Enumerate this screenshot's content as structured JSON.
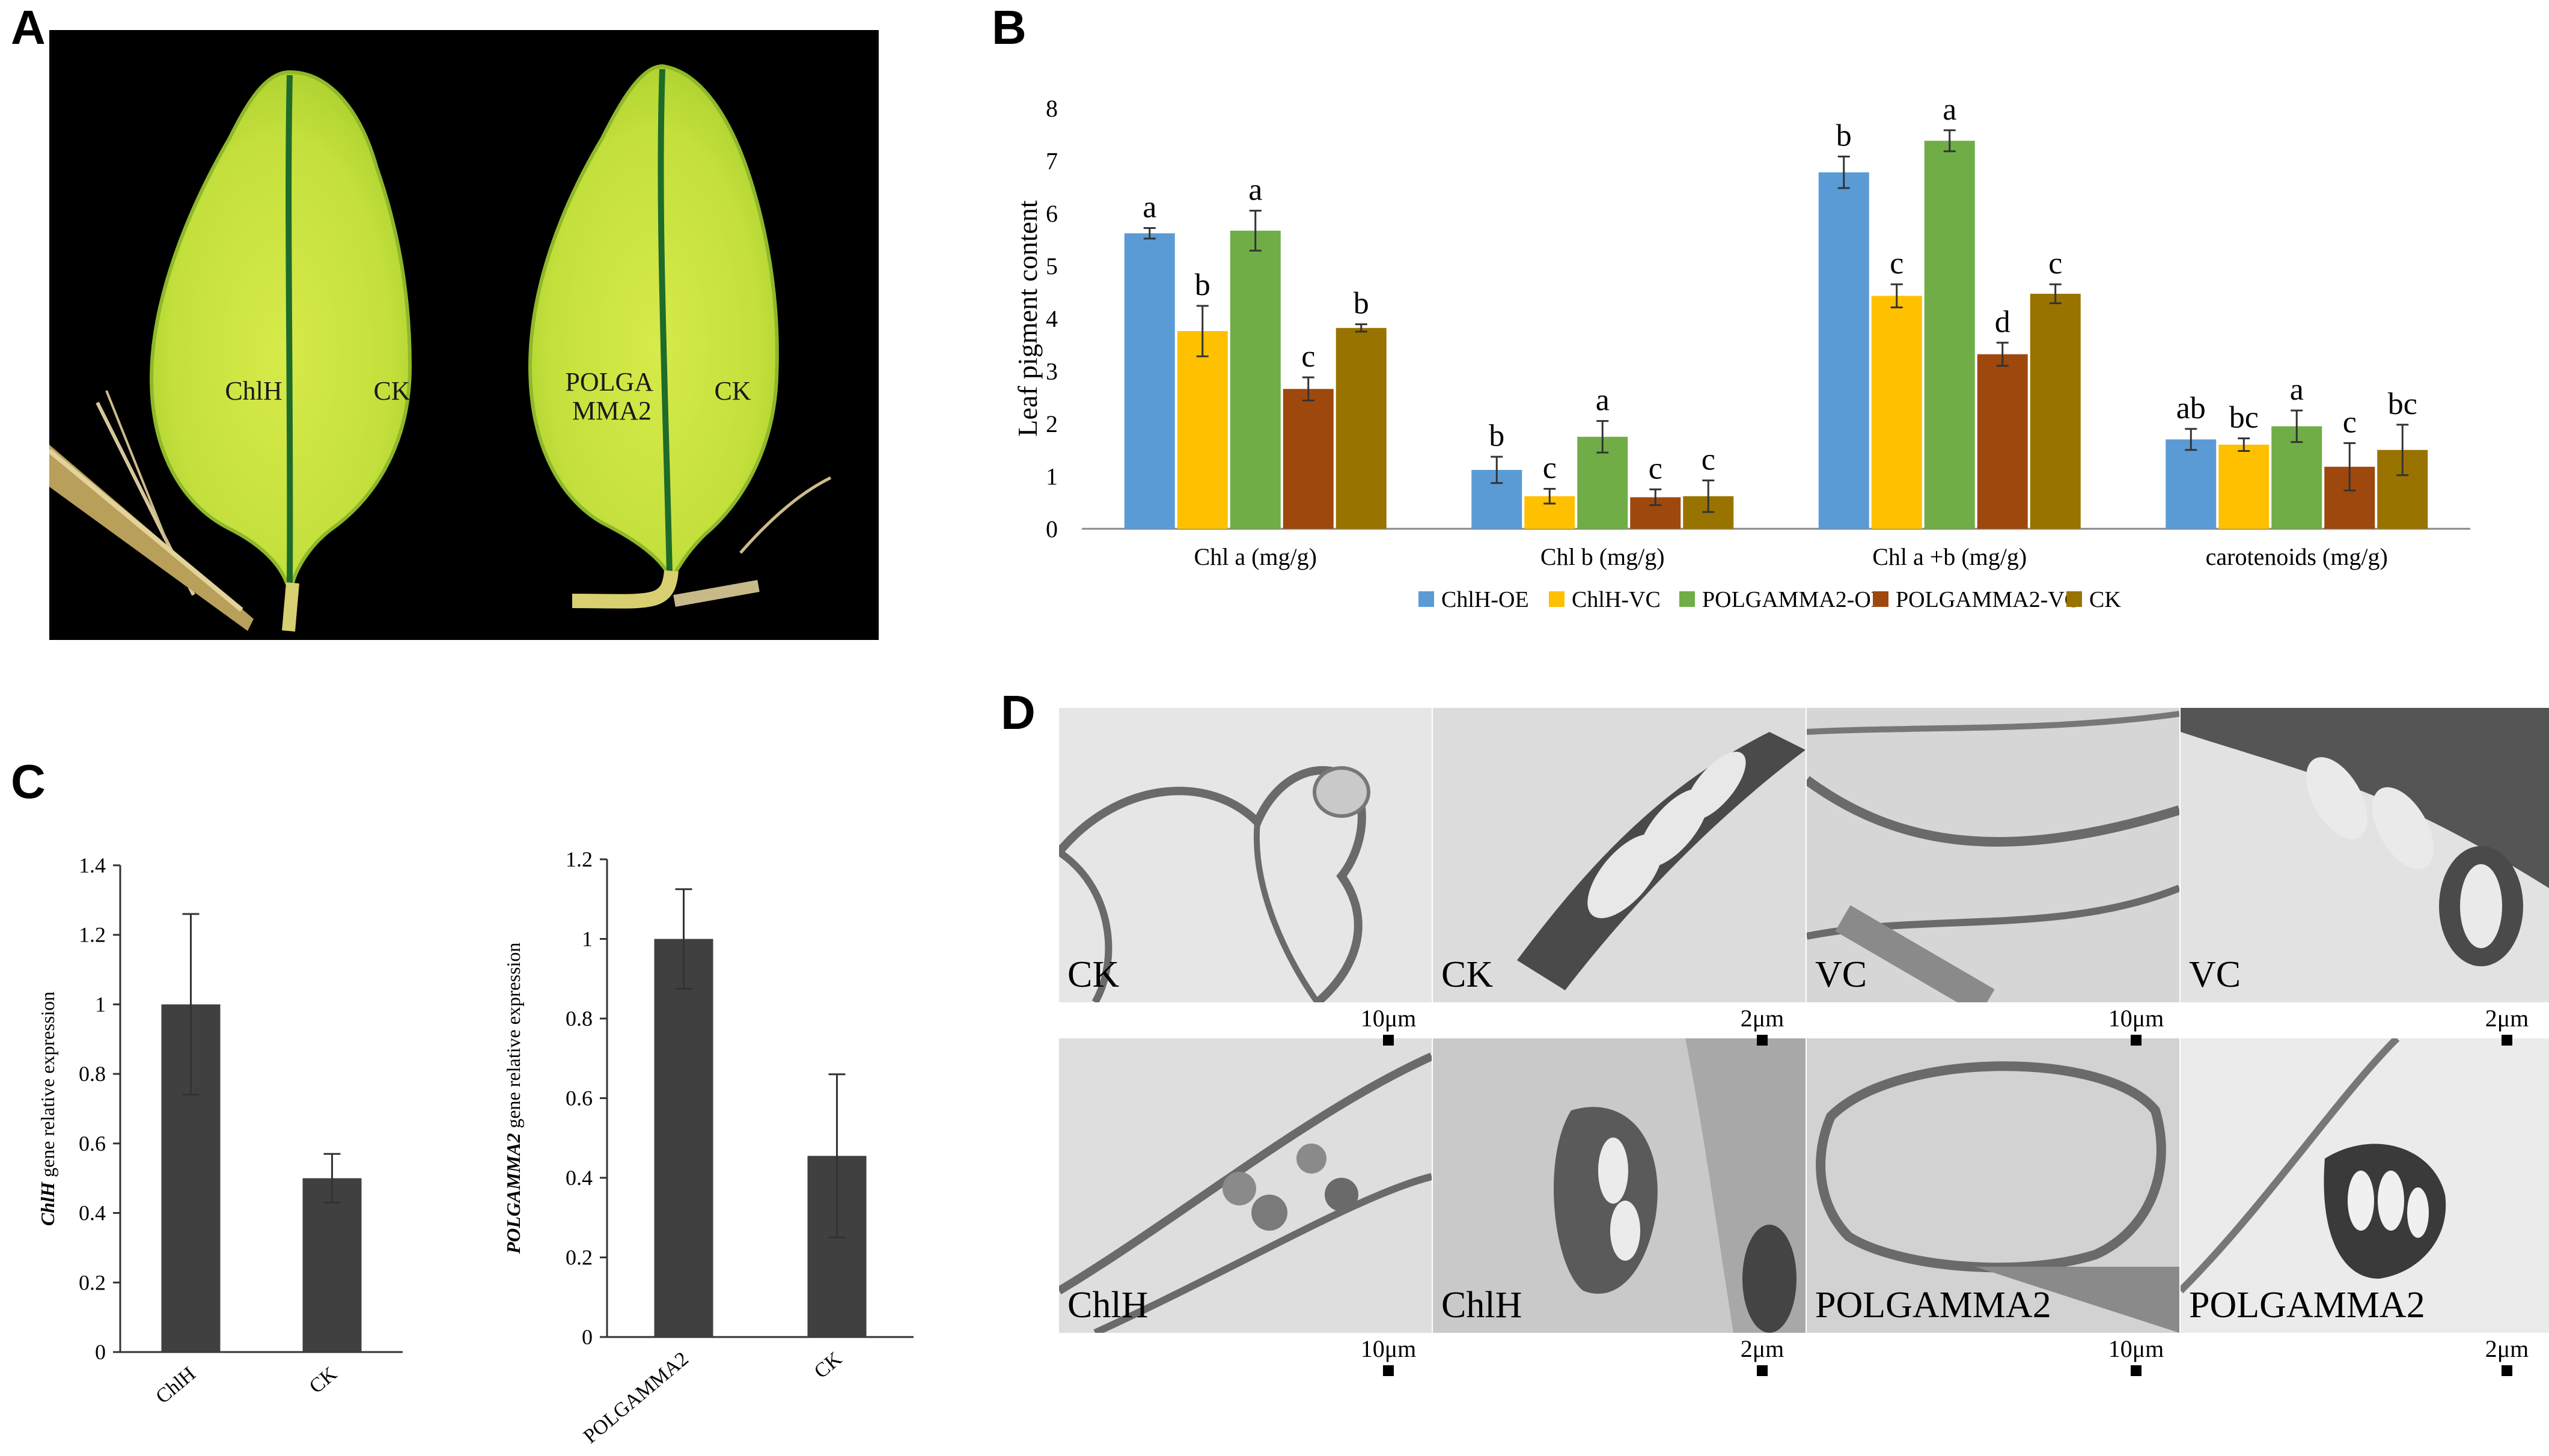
{
  "panel_labels": {
    "a": "A",
    "b": "B",
    "c": "C",
    "d": "D"
  },
  "panel_a": {
    "left_leaf_left": "ChlH",
    "left_leaf_right": "CK",
    "right_leaf_left": "POLGA\nMMA2",
    "right_leaf_right": "CK"
  },
  "chart_data": [
    {
      "type": "bar",
      "panel": "B",
      "categories": [
        "Chl a (mg/g)",
        "Chl b (mg/g)",
        "Chl a +b (mg/g)",
        "carotenoids (mg/g)"
      ],
      "ylabel": "Leaf pigment content",
      "ylim": [
        0,
        8
      ],
      "yticks": [
        0,
        1,
        2,
        3,
        4,
        5,
        6,
        7,
        8
      ],
      "legend_position": "bottom",
      "error_bars": true,
      "series": [
        {
          "name": "ChlH-OE",
          "color": "#5b9bd5",
          "values": [
            5.62,
            1.12,
            6.78,
            1.7
          ],
          "errors": [
            0.1,
            0.25,
            0.3,
            0.2
          ],
          "letters": [
            "a",
            "b",
            "b",
            "ab"
          ]
        },
        {
          "name": "ChlH-VC",
          "color": "#ffc000",
          "values": [
            3.76,
            0.62,
            4.43,
            1.6
          ],
          "errors": [
            0.48,
            0.14,
            0.22,
            0.12
          ],
          "letters": [
            "b",
            "c",
            "c",
            "bc"
          ]
        },
        {
          "name": "POLGAMMA2-OE",
          "color": "#70ad47",
          "values": [
            5.67,
            1.75,
            7.38,
            1.95
          ],
          "errors": [
            0.38,
            0.3,
            0.2,
            0.3
          ],
          "letters": [
            "a",
            "a",
            "a",
            "a"
          ]
        },
        {
          "name": "POLGAMMA2-VC",
          "color": "#9e480e",
          "values": [
            2.66,
            0.6,
            3.32,
            1.18
          ],
          "errors": [
            0.22,
            0.15,
            0.22,
            0.45
          ],
          "letters": [
            "c",
            "c",
            "d",
            "c"
          ]
        },
        {
          "name": "CK",
          "color": "#997300",
          "values": [
            3.82,
            0.62,
            4.47,
            1.5
          ],
          "errors": [
            0.07,
            0.3,
            0.18,
            0.48
          ],
          "letters": [
            "b",
            "c",
            "c",
            "bc"
          ]
        }
      ]
    },
    {
      "type": "bar",
      "panel": "C-left",
      "categories": [
        "ChlH",
        "CK"
      ],
      "values": [
        1.0,
        0.5
      ],
      "errors": [
        0.26,
        0.07
      ],
      "ylabel_italic": "ChlH",
      "ylabel_rest": " gene relative expression",
      "ylim": [
        0,
        1.4
      ],
      "yticks": [
        "0",
        "0.2",
        "0.4",
        "0.6",
        "0.8",
        "1",
        "1.2",
        "1.4"
      ],
      "color": "#404040"
    },
    {
      "type": "bar",
      "panel": "C-right",
      "categories": [
        "POLGAMMA2",
        "CK"
      ],
      "values": [
        1.0,
        0.455
      ],
      "errors": [
        0.125,
        0.205
      ],
      "ylabel_italic": "POLGAMMA2",
      "ylabel_rest": " gene relative expression",
      "ylim": [
        0,
        1.2
      ],
      "yticks": [
        "0",
        "0.2",
        "0.4",
        "0.6",
        "0.8",
        "1",
        "1.2"
      ],
      "color": "#404040"
    }
  ],
  "panel_d": {
    "images": [
      {
        "label": "CK",
        "scale": "10μm"
      },
      {
        "label": "CK",
        "scale": "2μm"
      },
      {
        "label": "VC",
        "scale": "10μm"
      },
      {
        "label": "VC",
        "scale": "2μm"
      },
      {
        "label": "ChlH",
        "scale": "10μm"
      },
      {
        "label": "ChlH",
        "scale": "2μm"
      },
      {
        "label": "POLGAMMA2",
        "scale": "10μm"
      },
      {
        "label": "POLGAMMA2",
        "scale": "2μm"
      }
    ]
  }
}
